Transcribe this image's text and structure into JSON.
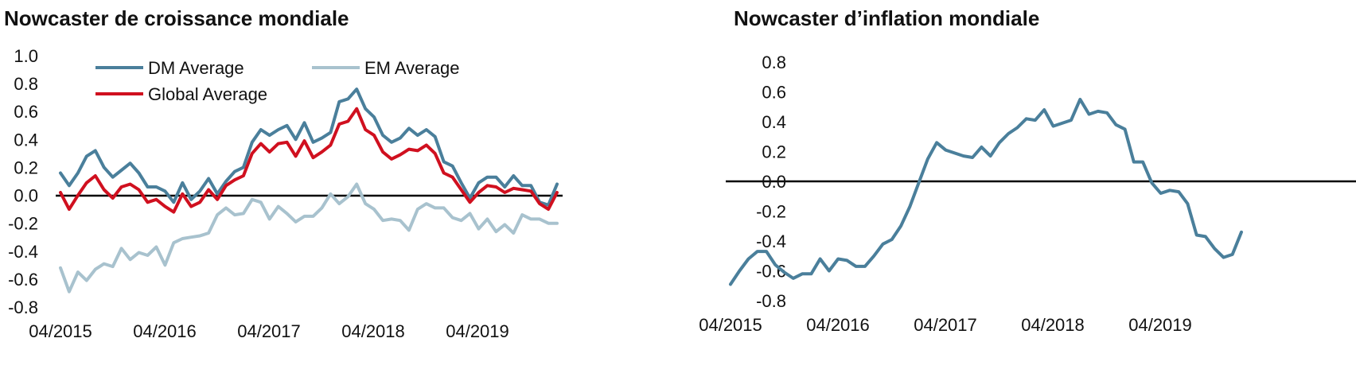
{
  "chart_data": [
    {
      "type": "line",
      "title": "Nowcaster de croissance mondiale",
      "x_tick_labels": [
        "04/2015",
        "04/2016",
        "04/2017",
        "04/2018",
        "04/2019"
      ],
      "ylim": [
        -0.8,
        1.0
      ],
      "y_ticks": [
        -0.8,
        -0.6,
        -0.4,
        -0.2,
        0.0,
        0.2,
        0.4,
        0.6,
        0.8,
        1.0
      ],
      "y_tick_labels": [
        "-0.8",
        "-0.6",
        "-0.4",
        "-0.2",
        "0.0",
        "0.2",
        "0.4",
        "0.6",
        "0.8",
        "1.0"
      ],
      "zero_line": true,
      "grid": false,
      "legend": "top-inside",
      "series": [
        {
          "name": "DM Average",
          "color": "#4a7f9b",
          "values": [
            0.16,
            0.07,
            0.16,
            0.28,
            0.32,
            0.2,
            0.13,
            0.18,
            0.23,
            0.16,
            0.06,
            0.06,
            0.03,
            -0.05,
            0.09,
            -0.03,
            0.03,
            0.12,
            0.01,
            0.1,
            0.17,
            0.2,
            0.38,
            0.47,
            0.43,
            0.47,
            0.5,
            0.4,
            0.52,
            0.38,
            0.41,
            0.45,
            0.67,
            0.69,
            0.76,
            0.62,
            0.56,
            0.43,
            0.38,
            0.41,
            0.48,
            0.43,
            0.47,
            0.42,
            0.24,
            0.21,
            0.09,
            -0.02,
            0.09,
            0.13,
            0.13,
            0.06,
            0.14,
            0.07,
            0.07,
            -0.05,
            -0.07,
            0.08
          ]
        },
        {
          "name": "EM Average",
          "color": "#a8c2ce",
          "values": [
            -0.52,
            -0.69,
            -0.55,
            -0.61,
            -0.53,
            -0.49,
            -0.51,
            -0.38,
            -0.46,
            -0.41,
            -0.43,
            -0.37,
            -0.5,
            -0.34,
            -0.31,
            -0.3,
            -0.29,
            -0.27,
            -0.14,
            -0.09,
            -0.14,
            -0.13,
            -0.03,
            -0.05,
            -0.17,
            -0.08,
            -0.13,
            -0.19,
            -0.15,
            -0.15,
            -0.09,
            0.01,
            -0.06,
            -0.01,
            0.08,
            -0.06,
            -0.1,
            -0.18,
            -0.17,
            -0.18,
            -0.25,
            -0.1,
            -0.06,
            -0.09,
            -0.09,
            -0.16,
            -0.18,
            -0.13,
            -0.24,
            -0.17,
            -0.26,
            -0.21,
            -0.27,
            -0.14,
            -0.17,
            -0.17,
            -0.2,
            -0.2
          ]
        },
        {
          "name": "Global Average",
          "color": "#d0101f",
          "values": [
            0.02,
            -0.1,
            0.0,
            0.09,
            0.14,
            0.04,
            -0.02,
            0.06,
            0.08,
            0.04,
            -0.05,
            -0.03,
            -0.08,
            -0.12,
            0.01,
            -0.08,
            -0.05,
            0.04,
            -0.03,
            0.07,
            0.11,
            0.14,
            0.3,
            0.37,
            0.31,
            0.37,
            0.38,
            0.28,
            0.39,
            0.27,
            0.31,
            0.36,
            0.51,
            0.53,
            0.62,
            0.47,
            0.43,
            0.31,
            0.26,
            0.29,
            0.33,
            0.32,
            0.36,
            0.3,
            0.16,
            0.13,
            0.04,
            -0.05,
            0.02,
            0.07,
            0.06,
            0.02,
            0.05,
            0.04,
            0.03,
            -0.06,
            -0.1,
            0.02
          ]
        }
      ]
    },
    {
      "type": "line",
      "title": "Nowcaster d’inflation mondiale",
      "x_tick_labels": [
        "04/2015",
        "04/2016",
        "04/2017",
        "04/2018",
        "04/2019"
      ],
      "ylim": [
        -0.8,
        0.8
      ],
      "y_ticks": [
        -0.8,
        -0.6,
        -0.4,
        -0.2,
        0.0,
        0.2,
        0.4,
        0.6,
        0.8
      ],
      "y_tick_labels": [
        "-0.8",
        "-0.6",
        "-0.4",
        "-0.2",
        "0.0",
        "0.2",
        "0.4",
        "0.6",
        "0.8"
      ],
      "zero_line": true,
      "grid": false,
      "legend": "none",
      "series": [
        {
          "color": "#4a7f9b",
          "values": [
            -0.69,
            -0.6,
            -0.52,
            -0.47,
            -0.47,
            -0.56,
            -0.61,
            -0.65,
            -0.62,
            -0.62,
            -0.52,
            -0.6,
            -0.52,
            -0.53,
            -0.57,
            -0.57,
            -0.5,
            -0.42,
            -0.39,
            -0.3,
            -0.17,
            -0.01,
            0.15,
            0.26,
            0.21,
            0.19,
            0.17,
            0.16,
            0.23,
            0.17,
            0.26,
            0.32,
            0.36,
            0.42,
            0.41,
            0.48,
            0.37,
            0.39,
            0.41,
            0.55,
            0.45,
            0.47,
            0.46,
            0.38,
            0.35,
            0.13,
            0.13,
            -0.01,
            -0.08,
            -0.06,
            -0.07,
            -0.15,
            -0.36,
            -0.37,
            -0.45,
            -0.51,
            -0.49,
            -0.34
          ]
        }
      ]
    }
  ]
}
